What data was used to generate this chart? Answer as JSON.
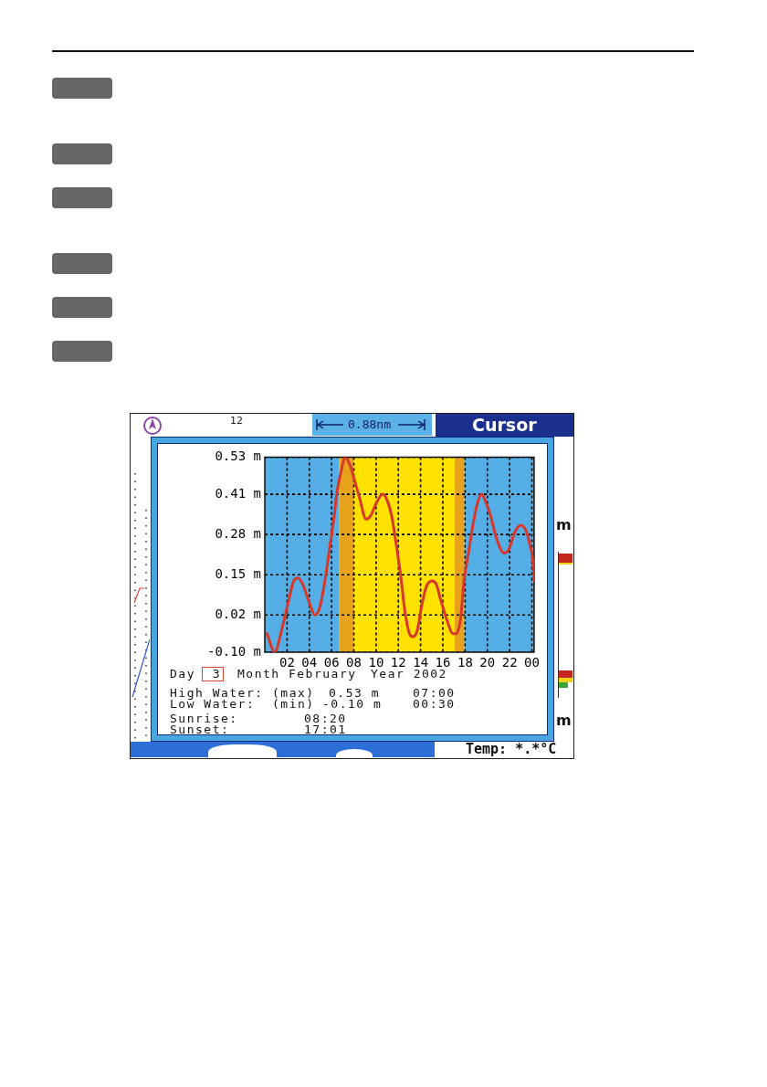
{
  "chart_data": {
    "type": "line",
    "x": [
      "2002-02-03T00:12",
      "2002-02-03T00:54",
      "2002-02-03T01:30",
      "2002-02-03T02:06",
      "2002-02-03T02:36",
      "2002-02-03T03:00",
      "2002-02-03T03:24",
      "2002-02-03T04:00",
      "2002-02-03T04:30",
      "2002-02-03T04:54",
      "2002-02-03T05:24",
      "2002-02-03T05:48",
      "2002-02-03T06:12",
      "2002-02-03T06:30",
      "2002-02-03T06:54",
      "2002-02-03T07:12",
      "2002-02-03T07:42",
      "2002-02-03T08:06",
      "2002-02-03T08:30",
      "2002-02-03T09:06",
      "2002-02-03T09:30",
      "2002-02-03T10:00",
      "2002-02-03T10:36",
      "2002-02-03T11:00",
      "2002-02-03T11:24",
      "2002-02-03T11:48",
      "2002-02-03T12:12",
      "2002-02-03T12:36",
      "2002-02-03T13:00",
      "2002-02-03T13:18",
      "2002-02-03T13:42",
      "2002-02-03T14:06",
      "2002-02-03T14:30",
      "2002-02-03T15:00",
      "2002-02-03T15:24",
      "2002-02-03T15:48",
      "2002-02-03T16:24",
      "2002-02-03T16:54",
      "2002-02-03T17:12",
      "2002-02-03T17:36",
      "2002-02-03T17:54",
      "2002-02-03T18:18",
      "2002-02-03T18:42",
      "2002-02-03T19:06",
      "2002-02-03T19:30",
      "2002-02-03T19:48",
      "2002-02-03T20:18",
      "2002-02-03T20:48",
      "2002-02-03T21:30",
      "2002-02-03T21:54",
      "2002-02-03T22:30",
      "2002-02-03T23:00",
      "2002-02-03T23:30",
      "2002-02-03T23:48",
      "2002-02-04T00:06",
      "2002-02-04T00:12"
    ],
    "values": [
      -0.04,
      -0.1,
      -0.03,
      0.06,
      0.13,
      0.14,
      0.12,
      0.06,
      0.02,
      0.04,
      0.13,
      0.23,
      0.33,
      0.42,
      0.49,
      0.53,
      0.5,
      0.45,
      0.4,
      0.33,
      0.34,
      0.38,
      0.41,
      0.39,
      0.34,
      0.25,
      0.15,
      0.03,
      -0.04,
      -0.05,
      -0.03,
      0.05,
      0.11,
      0.13,
      0.12,
      0.07,
      0.0,
      -0.04,
      -0.04,
      0.01,
      0.13,
      0.22,
      0.31,
      0.38,
      0.41,
      0.39,
      0.34,
      0.27,
      0.22,
      0.23,
      0.29,
      0.31,
      0.29,
      0.25,
      0.19,
      0.13
    ],
    "color": "#d7382c",
    "xlim": [
      "2002-02-03T00:00",
      "2002-02-04T00:12"
    ],
    "xticks": [
      {
        "value": "2002-02-03T02:00",
        "label": "02"
      },
      {
        "value": "2002-02-03T04:00",
        "label": "04"
      },
      {
        "value": "2002-02-03T06:00",
        "label": "06"
      },
      {
        "value": "2002-02-03T08:00",
        "label": "08"
      },
      {
        "value": "2002-02-03T10:00",
        "label": "10"
      },
      {
        "value": "2002-02-03T12:00",
        "label": "12"
      },
      {
        "value": "2002-02-03T14:00",
        "label": "14"
      },
      {
        "value": "2002-02-03T16:00",
        "label": "16"
      },
      {
        "value": "2002-02-03T18:00",
        "label": "18"
      },
      {
        "value": "2002-02-03T20:00",
        "label": "20"
      },
      {
        "value": "2002-02-03T22:00",
        "label": "22"
      },
      {
        "value": "2002-02-04T00:00",
        "label": "00"
      }
    ],
    "ylim": [
      -0.1,
      0.53
    ],
    "yticks": [
      {
        "value": -0.1,
        "label": "-0.10 m"
      },
      {
        "value": 0.02,
        "label": "0.02 m"
      },
      {
        "value": 0.15,
        "label": "0.15 m"
      },
      {
        "value": 0.28,
        "label": "0.28 m"
      },
      {
        "value": 0.41,
        "label": "0.41 m"
      },
      {
        "value": 0.53,
        "label": "0.53 m"
      }
    ],
    "grid": true,
    "bands": [
      {
        "axis": "x",
        "from": "2002-02-03T00:00",
        "to": "2002-02-03T06:40",
        "color": "#56aee6"
      },
      {
        "axis": "x",
        "from": "2002-02-03T06:40",
        "to": "2002-02-03T08:00",
        "color": "#e8a31c"
      },
      {
        "axis": "x",
        "from": "2002-02-03T08:00",
        "to": "2002-02-03T17:03",
        "color": "#ffe100"
      },
      {
        "axis": "x",
        "from": "2002-02-03T17:03",
        "to": "2002-02-03T17:57",
        "color": "#e8a31c"
      },
      {
        "axis": "x",
        "from": "2002-02-03T17:57",
        "to": "2002-02-04T00:12",
        "color": "#56aee6"
      }
    ],
    "annotations": [
      "Day",
      "3",
      "Month February",
      "Year 2002",
      "High Water:",
      "(max)",
      "0.53 m",
      "07:00",
      "Low Water:",
      "(min)",
      "-0.10 m",
      "00:30",
      "Sunrise:",
      "08:20",
      "Sunset:",
      "17:01",
      "12",
      "0.88nm",
      "Cursor",
      "m",
      "m",
      "Temp: *.*°C"
    ]
  }
}
